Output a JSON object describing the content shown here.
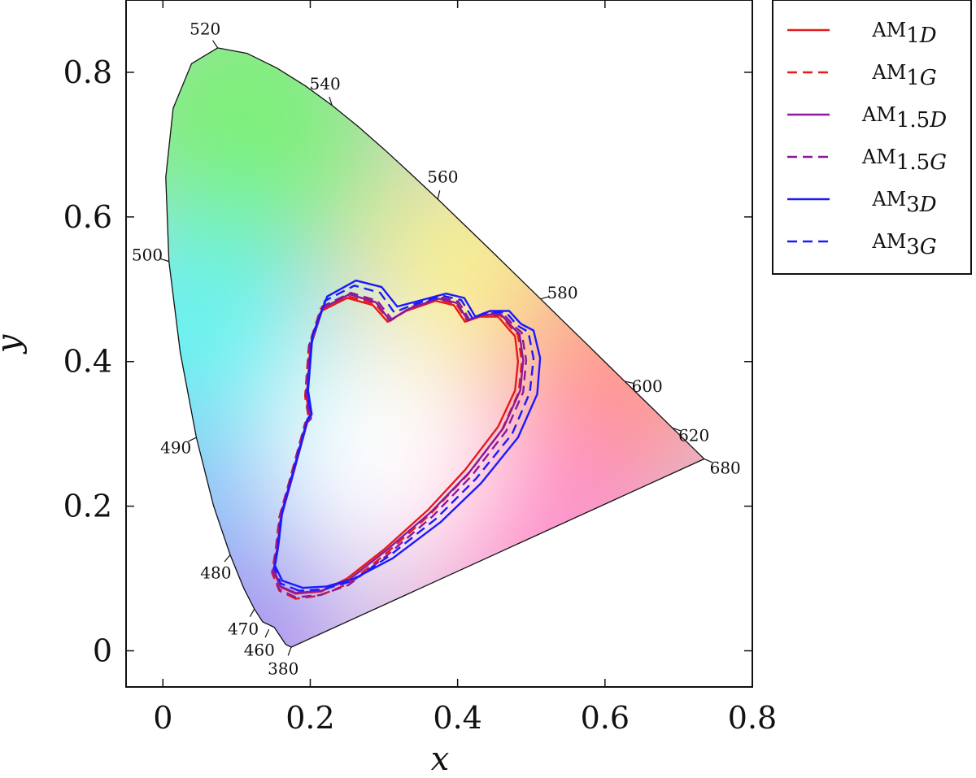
{
  "chart_data": {
    "type": "line",
    "title": "",
    "xlabel": "x",
    "ylabel": "y",
    "xlim": [
      -0.05,
      0.8
    ],
    "ylim": [
      -0.05,
      0.9
    ],
    "x_ticks": [
      "0",
      "0.2",
      "0.4",
      "0.6",
      "0.8"
    ],
    "y_ticks": [
      "0",
      "0.2",
      "0.4",
      "0.6",
      "0.8"
    ],
    "x_tick_values": [
      0,
      0.2,
      0.4,
      0.6,
      0.8
    ],
    "y_tick_values": [
      0,
      0.2,
      0.4,
      0.6,
      0.8
    ],
    "grid": false,
    "legend_placement": "outside-top-right",
    "spectral_locus": [
      [
        0.1741,
        0.005
      ],
      [
        0.1666,
        0.0089
      ],
      [
        0.151,
        0.0326
      ],
      [
        0.1355,
        0.0399
      ],
      [
        0.1241,
        0.0578
      ],
      [
        0.1096,
        0.0868
      ],
      [
        0.0913,
        0.1327
      ],
      [
        0.0687,
        0.2007
      ],
      [
        0.0454,
        0.295
      ],
      [
        0.0235,
        0.4127
      ],
      [
        0.0082,
        0.5384
      ],
      [
        0.0039,
        0.6548
      ],
      [
        0.0139,
        0.7502
      ],
      [
        0.0389,
        0.812
      ],
      [
        0.0743,
        0.8338
      ],
      [
        0.1142,
        0.8262
      ],
      [
        0.1547,
        0.8059
      ],
      [
        0.1929,
        0.7816
      ],
      [
        0.2296,
        0.7543
      ],
      [
        0.2658,
        0.7243
      ],
      [
        0.3016,
        0.6923
      ],
      [
        0.3373,
        0.6589
      ],
      [
        0.3731,
        0.6245
      ],
      [
        0.4087,
        0.5896
      ],
      [
        0.4441,
        0.5547
      ],
      [
        0.4788,
        0.5202
      ],
      [
        0.5125,
        0.4866
      ],
      [
        0.5448,
        0.4544
      ],
      [
        0.5752,
        0.4242
      ],
      [
        0.6029,
        0.3965
      ],
      [
        0.627,
        0.3725
      ],
      [
        0.6482,
        0.3514
      ],
      [
        0.6658,
        0.334
      ],
      [
        0.6801,
        0.3197
      ],
      [
        0.6915,
        0.3083
      ],
      [
        0.7006,
        0.2993
      ],
      [
        0.7079,
        0.292
      ],
      [
        0.714,
        0.2859
      ],
      [
        0.7347,
        0.2653
      ]
    ],
    "wavelength_labels": [
      {
        "label": "380",
        "x": 0.1741,
        "y": 0.005
      },
      {
        "label": "460",
        "x": 0.144,
        "y": 0.0297
      },
      {
        "label": "470",
        "x": 0.1241,
        "y": 0.0578
      },
      {
        "label": "480",
        "x": 0.0913,
        "y": 0.1327
      },
      {
        "label": "490",
        "x": 0.0454,
        "y": 0.295
      },
      {
        "label": "500",
        "x": 0.0082,
        "y": 0.5384
      },
      {
        "label": "520",
        "x": 0.0743,
        "y": 0.8338
      },
      {
        "label": "540",
        "x": 0.2296,
        "y": 0.7543
      },
      {
        "label": "560",
        "x": 0.3731,
        "y": 0.6245
      },
      {
        "label": "580",
        "x": 0.5125,
        "y": 0.4866
      },
      {
        "label": "600",
        "x": 0.627,
        "y": 0.3725
      },
      {
        "label": "620",
        "x": 0.6915,
        "y": 0.3083
      },
      {
        "label": "680",
        "x": 0.7347,
        "y": 0.2653
      }
    ],
    "series": [
      {
        "name": "AM1D",
        "base": "AM",
        "sub_number": "1",
        "sub_letter": "D",
        "color": "#e41a1c",
        "dash": "solid",
        "points": [
          [
            0.18,
            0.079
          ],
          [
            0.16,
            0.088
          ],
          [
            0.15,
            0.11
          ],
          [
            0.155,
            0.14
          ],
          [
            0.16,
            0.185
          ],
          [
            0.175,
            0.24
          ],
          [
            0.195,
            0.315
          ],
          [
            0.2,
            0.32
          ],
          [
            0.195,
            0.35
          ],
          [
            0.2,
            0.42
          ],
          [
            0.215,
            0.47
          ],
          [
            0.25,
            0.488
          ],
          [
            0.285,
            0.478
          ],
          [
            0.305,
            0.455
          ],
          [
            0.33,
            0.47
          ],
          [
            0.37,
            0.484
          ],
          [
            0.395,
            0.478
          ],
          [
            0.41,
            0.455
          ],
          [
            0.43,
            0.462
          ],
          [
            0.455,
            0.462
          ],
          [
            0.47,
            0.444
          ],
          [
            0.478,
            0.435
          ],
          [
            0.482,
            0.4
          ],
          [
            0.478,
            0.36
          ],
          [
            0.455,
            0.31
          ],
          [
            0.41,
            0.25
          ],
          [
            0.36,
            0.195
          ],
          [
            0.3,
            0.14
          ],
          [
            0.25,
            0.1
          ],
          [
            0.215,
            0.082
          ]
        ]
      },
      {
        "name": "AM1G",
        "base": "AM",
        "sub_number": "1",
        "sub_letter": "G",
        "color": "#e41a1c",
        "dash": "dashed",
        "points": [
          [
            0.18,
            0.072
          ],
          [
            0.158,
            0.083
          ],
          [
            0.148,
            0.108
          ],
          [
            0.153,
            0.14
          ],
          [
            0.158,
            0.185
          ],
          [
            0.173,
            0.24
          ],
          [
            0.193,
            0.315
          ],
          [
            0.198,
            0.32
          ],
          [
            0.193,
            0.352
          ],
          [
            0.198,
            0.422
          ],
          [
            0.214,
            0.473
          ],
          [
            0.252,
            0.49
          ],
          [
            0.288,
            0.48
          ],
          [
            0.308,
            0.456
          ],
          [
            0.333,
            0.472
          ],
          [
            0.373,
            0.486
          ],
          [
            0.398,
            0.48
          ],
          [
            0.413,
            0.456
          ],
          [
            0.433,
            0.464
          ],
          [
            0.458,
            0.464
          ],
          [
            0.473,
            0.446
          ],
          [
            0.482,
            0.437
          ],
          [
            0.487,
            0.4
          ],
          [
            0.483,
            0.358
          ],
          [
            0.46,
            0.305
          ],
          [
            0.414,
            0.244
          ],
          [
            0.362,
            0.188
          ],
          [
            0.3,
            0.132
          ],
          [
            0.25,
            0.092
          ],
          [
            0.212,
            0.076
          ]
        ]
      },
      {
        "name": "AM1.5D",
        "base": "AM",
        "sub_number": "1.5",
        "sub_letter": "D",
        "color": "#8b1a9b",
        "dash": "solid",
        "points": [
          [
            0.18,
            0.08
          ],
          [
            0.16,
            0.089
          ],
          [
            0.151,
            0.111
          ],
          [
            0.156,
            0.141
          ],
          [
            0.161,
            0.186
          ],
          [
            0.176,
            0.241
          ],
          [
            0.196,
            0.316
          ],
          [
            0.201,
            0.321
          ],
          [
            0.196,
            0.352
          ],
          [
            0.201,
            0.423
          ],
          [
            0.217,
            0.474
          ],
          [
            0.253,
            0.493
          ],
          [
            0.289,
            0.482
          ],
          [
            0.308,
            0.457
          ],
          [
            0.334,
            0.473
          ],
          [
            0.374,
            0.487
          ],
          [
            0.399,
            0.481
          ],
          [
            0.414,
            0.457
          ],
          [
            0.434,
            0.465
          ],
          [
            0.459,
            0.465
          ],
          [
            0.475,
            0.447
          ],
          [
            0.484,
            0.438
          ],
          [
            0.489,
            0.402
          ],
          [
            0.485,
            0.36
          ],
          [
            0.462,
            0.308
          ],
          [
            0.416,
            0.247
          ],
          [
            0.364,
            0.192
          ],
          [
            0.302,
            0.138
          ],
          [
            0.252,
            0.098
          ],
          [
            0.215,
            0.083
          ]
        ]
      },
      {
        "name": "AM1.5G",
        "base": "AM",
        "sub_number": "1.5",
        "sub_letter": "G",
        "color": "#8b1a9b",
        "dash": "dashed",
        "points": [
          [
            0.18,
            0.074
          ],
          [
            0.158,
            0.085
          ],
          [
            0.149,
            0.109
          ],
          [
            0.154,
            0.141
          ],
          [
            0.159,
            0.186
          ],
          [
            0.174,
            0.241
          ],
          [
            0.194,
            0.316
          ],
          [
            0.199,
            0.321
          ],
          [
            0.194,
            0.353
          ],
          [
            0.199,
            0.424
          ],
          [
            0.216,
            0.476
          ],
          [
            0.255,
            0.495
          ],
          [
            0.291,
            0.484
          ],
          [
            0.311,
            0.458
          ],
          [
            0.336,
            0.475
          ],
          [
            0.376,
            0.489
          ],
          [
            0.401,
            0.483
          ],
          [
            0.416,
            0.458
          ],
          [
            0.436,
            0.467
          ],
          [
            0.461,
            0.467
          ],
          [
            0.477,
            0.449
          ],
          [
            0.487,
            0.44
          ],
          [
            0.493,
            0.402
          ],
          [
            0.489,
            0.358
          ],
          [
            0.466,
            0.304
          ],
          [
            0.419,
            0.242
          ],
          [
            0.366,
            0.186
          ],
          [
            0.303,
            0.131
          ],
          [
            0.252,
            0.091
          ],
          [
            0.213,
            0.077
          ]
        ]
      },
      {
        "name": "AM3D",
        "base": "AM",
        "sub_number": "3",
        "sub_letter": "D",
        "color": "#1a1aff",
        "dash": "solid",
        "points": [
          [
            0.19,
            0.087
          ],
          [
            0.162,
            0.097
          ],
          [
            0.152,
            0.118
          ],
          [
            0.157,
            0.148
          ],
          [
            0.162,
            0.192
          ],
          [
            0.177,
            0.247
          ],
          [
            0.197,
            0.322
          ],
          [
            0.202,
            0.327
          ],
          [
            0.197,
            0.36
          ],
          [
            0.203,
            0.436
          ],
          [
            0.223,
            0.49
          ],
          [
            0.262,
            0.512
          ],
          [
            0.297,
            0.503
          ],
          [
            0.318,
            0.476
          ],
          [
            0.344,
            0.483
          ],
          [
            0.384,
            0.494
          ],
          [
            0.409,
            0.488
          ],
          [
            0.424,
            0.462
          ],
          [
            0.444,
            0.47
          ],
          [
            0.47,
            0.47
          ],
          [
            0.486,
            0.452
          ],
          [
            0.503,
            0.443
          ],
          [
            0.512,
            0.405
          ],
          [
            0.508,
            0.355
          ],
          [
            0.482,
            0.295
          ],
          [
            0.432,
            0.232
          ],
          [
            0.377,
            0.178
          ],
          [
            0.312,
            0.128
          ],
          [
            0.26,
            0.1
          ],
          [
            0.222,
            0.089
          ]
        ]
      },
      {
        "name": "AM3G",
        "base": "AM",
        "sub_number": "3",
        "sub_letter": "G",
        "color": "#1a1aff",
        "dash": "dashed",
        "points": [
          [
            0.185,
            0.083
          ],
          [
            0.16,
            0.093
          ],
          [
            0.151,
            0.115
          ],
          [
            0.156,
            0.146
          ],
          [
            0.161,
            0.19
          ],
          [
            0.176,
            0.245
          ],
          [
            0.196,
            0.32
          ],
          [
            0.201,
            0.325
          ],
          [
            0.196,
            0.357
          ],
          [
            0.202,
            0.431
          ],
          [
            0.22,
            0.484
          ],
          [
            0.26,
            0.505
          ],
          [
            0.295,
            0.495
          ],
          [
            0.314,
            0.468
          ],
          [
            0.34,
            0.479
          ],
          [
            0.38,
            0.491
          ],
          [
            0.405,
            0.485
          ],
          [
            0.42,
            0.46
          ],
          [
            0.44,
            0.468
          ],
          [
            0.466,
            0.468
          ],
          [
            0.481,
            0.45
          ],
          [
            0.496,
            0.441
          ],
          [
            0.503,
            0.404
          ],
          [
            0.498,
            0.357
          ],
          [
            0.474,
            0.3
          ],
          [
            0.425,
            0.238
          ],
          [
            0.371,
            0.183
          ],
          [
            0.307,
            0.131
          ],
          [
            0.256,
            0.096
          ],
          [
            0.218,
            0.085
          ]
        ]
      }
    ]
  }
}
